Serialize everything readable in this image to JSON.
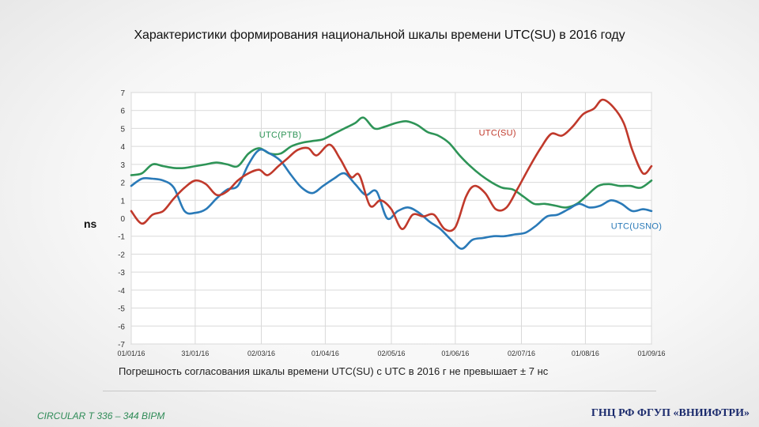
{
  "header": {
    "title": "Характеристики формирования национальной шкалы времени UTC(SU) в 2016 году"
  },
  "caption": "Погрешность согласования шкалы времени UTC(SU) с UTC  в 2016 г  не превышает   ± 7 нс",
  "footer": {
    "left": "CIRCULAR T 336 – 344  BIPM",
    "right": "ГНЦ РФ ФГУП «ВНИИФТРИ»"
  },
  "chart_data": {
    "type": "line",
    "title": "",
    "xlabel": "",
    "ylabel": "ns",
    "ylim": [
      -7,
      7
    ],
    "yticks": [
      -7,
      -6,
      -5,
      -4,
      -3,
      -2,
      -1,
      0,
      1,
      2,
      3,
      4,
      5,
      6,
      7
    ],
    "xticks": [
      "01/01/16",
      "31/01/16",
      "02/03/16",
      "01/04/16",
      "02/05/16",
      "01/06/16",
      "02/07/16",
      "01/08/16",
      "01/09/16"
    ],
    "xlim": [
      "2016-01-01",
      "2016-09-01"
    ],
    "grid": true,
    "series": [
      {
        "name": "UTC(SU)",
        "color": "#c0392b",
        "points": [
          [
            "2016-01-01",
            0.4
          ],
          [
            "2016-01-06",
            -0.3
          ],
          [
            "2016-01-11",
            0.2
          ],
          [
            "2016-01-16",
            0.4
          ],
          [
            "2016-01-21",
            1.1
          ],
          [
            "2016-01-26",
            1.7
          ],
          [
            "2016-01-31",
            2.1
          ],
          [
            "2016-02-05",
            1.9
          ],
          [
            "2016-02-10",
            1.3
          ],
          [
            "2016-02-15",
            1.5
          ],
          [
            "2016-02-20",
            2.1
          ],
          [
            "2016-02-25",
            2.5
          ],
          [
            "2016-03-01",
            2.7
          ],
          [
            "2016-03-05",
            2.4
          ],
          [
            "2016-03-10",
            2.9
          ],
          [
            "2016-03-14",
            3.3
          ],
          [
            "2016-03-19",
            3.8
          ],
          [
            "2016-03-24",
            3.9
          ],
          [
            "2016-03-28",
            3.5
          ],
          [
            "2016-04-03",
            4.1
          ],
          [
            "2016-04-08",
            3.3
          ],
          [
            "2016-04-13",
            2.3
          ],
          [
            "2016-04-17",
            2.4
          ],
          [
            "2016-04-22",
            0.7
          ],
          [
            "2016-04-27",
            1.0
          ],
          [
            "2016-05-02",
            0.5
          ],
          [
            "2016-05-07",
            -0.6
          ],
          [
            "2016-05-12",
            0.2
          ],
          [
            "2016-05-17",
            0.1
          ],
          [
            "2016-05-22",
            0.2
          ],
          [
            "2016-05-27",
            -0.6
          ],
          [
            "2016-06-01",
            -0.5
          ],
          [
            "2016-06-06",
            1.2
          ],
          [
            "2016-06-10",
            1.8
          ],
          [
            "2016-06-15",
            1.4
          ],
          [
            "2016-06-20",
            0.5
          ],
          [
            "2016-06-25",
            0.6
          ],
          [
            "2016-06-30",
            1.6
          ],
          [
            "2016-07-06",
            2.9
          ],
          [
            "2016-07-11",
            3.9
          ],
          [
            "2016-07-16",
            4.7
          ],
          [
            "2016-07-21",
            4.6
          ],
          [
            "2016-07-26",
            5.1
          ],
          [
            "2016-07-31",
            5.8
          ],
          [
            "2016-08-05",
            6.1
          ],
          [
            "2016-08-09",
            6.6
          ],
          [
            "2016-08-14",
            6.2
          ],
          [
            "2016-08-19",
            5.3
          ],
          [
            "2016-08-23",
            3.8
          ],
          [
            "2016-08-28",
            2.5
          ],
          [
            "2016-09-01",
            2.9
          ]
        ]
      },
      {
        "name": "UTC(PTB)",
        "color": "#2e9457",
        "points": [
          [
            "2016-01-01",
            2.4
          ],
          [
            "2016-01-06",
            2.5
          ],
          [
            "2016-01-11",
            3.0
          ],
          [
            "2016-01-16",
            2.9
          ],
          [
            "2016-01-21",
            2.8
          ],
          [
            "2016-01-26",
            2.8
          ],
          [
            "2016-01-31",
            2.9
          ],
          [
            "2016-02-05",
            3.0
          ],
          [
            "2016-02-10",
            3.1
          ],
          [
            "2016-02-15",
            3.0
          ],
          [
            "2016-02-20",
            2.9
          ],
          [
            "2016-02-25",
            3.6
          ],
          [
            "2016-03-01",
            3.9
          ],
          [
            "2016-03-06",
            3.6
          ],
          [
            "2016-03-11",
            3.6
          ],
          [
            "2016-03-16",
            4.0
          ],
          [
            "2016-03-21",
            4.2
          ],
          [
            "2016-03-26",
            4.3
          ],
          [
            "2016-03-31",
            4.4
          ],
          [
            "2016-04-05",
            4.7
          ],
          [
            "2016-04-10",
            5.0
          ],
          [
            "2016-04-15",
            5.3
          ],
          [
            "2016-04-19",
            5.6
          ],
          [
            "2016-04-24",
            5.0
          ],
          [
            "2016-04-29",
            5.1
          ],
          [
            "2016-05-04",
            5.3
          ],
          [
            "2016-05-09",
            5.4
          ],
          [
            "2016-05-14",
            5.2
          ],
          [
            "2016-05-19",
            4.8
          ],
          [
            "2016-05-24",
            4.6
          ],
          [
            "2016-05-29",
            4.2
          ],
          [
            "2016-06-03",
            3.5
          ],
          [
            "2016-06-08",
            2.9
          ],
          [
            "2016-06-13",
            2.4
          ],
          [
            "2016-06-18",
            2.0
          ],
          [
            "2016-06-23",
            1.7
          ],
          [
            "2016-06-28",
            1.6
          ],
          [
            "2016-07-03",
            1.2
          ],
          [
            "2016-07-08",
            0.8
          ],
          [
            "2016-07-13",
            0.8
          ],
          [
            "2016-07-18",
            0.7
          ],
          [
            "2016-07-23",
            0.6
          ],
          [
            "2016-07-28",
            0.8
          ],
          [
            "2016-08-02",
            1.3
          ],
          [
            "2016-08-07",
            1.8
          ],
          [
            "2016-08-12",
            1.9
          ],
          [
            "2016-08-17",
            1.8
          ],
          [
            "2016-08-22",
            1.8
          ],
          [
            "2016-08-27",
            1.7
          ],
          [
            "2016-09-01",
            2.1
          ]
        ]
      },
      {
        "name": "UTC(USNO)",
        "color": "#2a7ab8",
        "points": [
          [
            "2016-01-01",
            1.8
          ],
          [
            "2016-01-06",
            2.2
          ],
          [
            "2016-01-11",
            2.2
          ],
          [
            "2016-01-16",
            2.1
          ],
          [
            "2016-01-21",
            1.7
          ],
          [
            "2016-01-26",
            0.4
          ],
          [
            "2016-01-31",
            0.3
          ],
          [
            "2016-02-05",
            0.5
          ],
          [
            "2016-02-10",
            1.1
          ],
          [
            "2016-02-15",
            1.6
          ],
          [
            "2016-02-20",
            1.8
          ],
          [
            "2016-02-25",
            3.0
          ],
          [
            "2016-03-01",
            3.8
          ],
          [
            "2016-03-06",
            3.6
          ],
          [
            "2016-03-11",
            3.2
          ],
          [
            "2016-03-16",
            2.4
          ],
          [
            "2016-03-21",
            1.7
          ],
          [
            "2016-03-26",
            1.4
          ],
          [
            "2016-03-31",
            1.8
          ],
          [
            "2016-04-05",
            2.2
          ],
          [
            "2016-04-10",
            2.5
          ],
          [
            "2016-04-15",
            1.9
          ],
          [
            "2016-04-20",
            1.3
          ],
          [
            "2016-04-25",
            1.5
          ],
          [
            "2016-04-30",
            0.0
          ],
          [
            "2016-05-05",
            0.4
          ],
          [
            "2016-05-10",
            0.6
          ],
          [
            "2016-05-15",
            0.3
          ],
          [
            "2016-05-20",
            -0.2
          ],
          [
            "2016-05-25",
            -0.6
          ],
          [
            "2016-05-30",
            -1.2
          ],
          [
            "2016-06-04",
            -1.7
          ],
          [
            "2016-06-09",
            -1.2
          ],
          [
            "2016-06-14",
            -1.1
          ],
          [
            "2016-06-19",
            -1.0
          ],
          [
            "2016-06-24",
            -1.0
          ],
          [
            "2016-06-29",
            -0.9
          ],
          [
            "2016-07-04",
            -0.8
          ],
          [
            "2016-07-09",
            -0.4
          ],
          [
            "2016-07-14",
            0.1
          ],
          [
            "2016-07-19",
            0.2
          ],
          [
            "2016-07-24",
            0.5
          ],
          [
            "2016-07-29",
            0.8
          ],
          [
            "2016-08-03",
            0.6
          ],
          [
            "2016-08-08",
            0.7
          ],
          [
            "2016-08-13",
            1.0
          ],
          [
            "2016-08-18",
            0.8
          ],
          [
            "2016-08-23",
            0.4
          ],
          [
            "2016-08-28",
            0.5
          ],
          [
            "2016-09-01",
            0.4
          ]
        ]
      }
    ],
    "annotations": [
      {
        "text": "UTC(PTB)",
        "series": "UTC(PTB)",
        "at": [
          "2016-03-01",
          4.5
        ]
      },
      {
        "text": "UTC(SU)",
        "series": "UTC(SU)",
        "at": [
          "2016-06-12",
          4.6
        ]
      },
      {
        "text": "UTC(USNO)",
        "series": "UTC(USNO)",
        "at": [
          "2016-08-13",
          -0.6
        ]
      }
    ]
  }
}
